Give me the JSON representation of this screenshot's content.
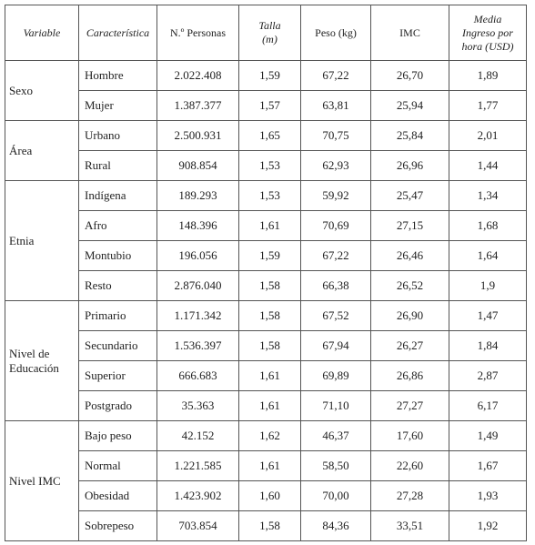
{
  "table": {
    "header": [
      [
        "Variable"
      ],
      [
        "Característica"
      ],
      [
        "N.º Personas"
      ],
      [
        "Talla",
        "(m)"
      ],
      [
        "Peso (kg)"
      ],
      [
        "IMC"
      ],
      [
        "Media",
        "Ingreso por",
        "hora (USD)"
      ]
    ],
    "groups": [
      {
        "variable": "Sexo",
        "rows": [
          [
            "Hombre",
            "2.022.408",
            "1,59",
            "67,22",
            "26,70",
            "1,89"
          ],
          [
            "Mujer",
            "1.387.377",
            "1,57",
            "63,81",
            "25,94",
            "1,77"
          ]
        ]
      },
      {
        "variable": "Área",
        "rows": [
          [
            "Urbano",
            "2.500.931",
            "1,65",
            "70,75",
            "25,84",
            "2,01"
          ],
          [
            "Rural",
            "908.854",
            "1,53",
            "62,93",
            "26,96",
            "1,44"
          ]
        ]
      },
      {
        "variable": "Etnia",
        "rows": [
          [
            "Indígena",
            "189.293",
            "1,53",
            "59,92",
            "25,47",
            "1,34"
          ],
          [
            "Afro",
            "148.396",
            "1,61",
            "70,69",
            "27,15",
            "1,68"
          ],
          [
            "Montubio",
            "196.056",
            "1,59",
            "67,22",
            "26,46",
            "1,64"
          ],
          [
            "Resto",
            "2.876.040",
            "1,58",
            "66,38",
            "26,52",
            "1,9"
          ]
        ]
      },
      {
        "variable": "Nivel de Educación",
        "rows": [
          [
            "Primario",
            "1.171.342",
            "1,58",
            "67,52",
            "26,90",
            "1,47"
          ],
          [
            "Secundario",
            "1.536.397",
            "1,58",
            "67,94",
            "26,27",
            "1,84"
          ],
          [
            "Superior",
            "666.683",
            "1,61",
            "69,89",
            "26,86",
            "2,87"
          ],
          [
            "Postgrado",
            "35.363",
            "1,61",
            "71,10",
            "27,27",
            "6,17"
          ]
        ]
      },
      {
        "variable": "Nivel IMC",
        "rows": [
          [
            "Bajo peso",
            "42.152",
            "1,62",
            "46,37",
            "17,60",
            "1,49"
          ],
          [
            "Normal",
            "1.221.585",
            "1,61",
            "58,50",
            "22,60",
            "1,67"
          ],
          [
            "Obesidad",
            "1.423.902",
            "1,60",
            "70,00",
            "27,28",
            "1,93"
          ],
          [
            "Sobrepeso",
            "703.854",
            "1,58",
            "84,36",
            "33,51",
            "1,92"
          ]
        ]
      }
    ]
  }
}
